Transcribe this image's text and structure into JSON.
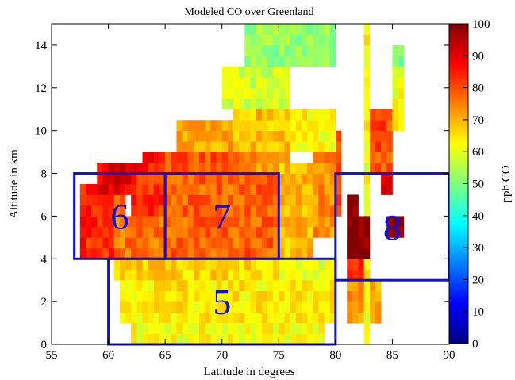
{
  "chart_data": {
    "type": "heatmap",
    "title": "Modeled CO over Greenland",
    "xlabel": "Latitude in degrees",
    "ylabel": "Altitude in km",
    "xlim": [
      55,
      90
    ],
    "ylim": [
      0,
      15
    ],
    "x_ticks": [
      "55",
      "60",
      "65",
      "70",
      "75",
      "80",
      "85",
      "90"
    ],
    "y_ticks": [
      "0",
      "2",
      "4",
      "6",
      "8",
      "10",
      "12",
      "14"
    ],
    "cell_size": {
      "lat": 0.5,
      "alt": 0.5
    },
    "colorbar": {
      "label": "ppb CO",
      "range": [
        0,
        100
      ],
      "ticks": [
        "0",
        "10",
        "20",
        "30",
        "40",
        "50",
        "60",
        "70",
        "80",
        "90",
        "100"
      ],
      "colormap": "jet"
    },
    "region_cells": [
      {
        "lat": [
          57.5,
          60.5
        ],
        "alt": [
          4,
          7.5
        ],
        "value": 84
      },
      {
        "lat": [
          60.5,
          61.5
        ],
        "alt": [
          4.5,
          7
        ],
        "value": 78
      },
      {
        "lat": [
          59,
          63
        ],
        "alt": [
          7,
          8.5
        ],
        "value": 90
      },
      {
        "lat": [
          62,
          65
        ],
        "alt": [
          6,
          8
        ],
        "value": 83
      },
      {
        "lat": [
          63,
          65
        ],
        "alt": [
          8,
          9
        ],
        "value": 86
      },
      {
        "lat": [
          60.5,
          65
        ],
        "alt": [
          4,
          6
        ],
        "value": 76
      },
      {
        "lat": [
          65,
          75
        ],
        "alt": [
          4,
          8
        ],
        "value": 78
      },
      {
        "lat": [
          65,
          72
        ],
        "alt": [
          8,
          9
        ],
        "value": 80
      },
      {
        "lat": [
          72,
          76
        ],
        "alt": [
          8,
          9
        ],
        "value": 73
      },
      {
        "lat": [
          66,
          71
        ],
        "alt": [
          9,
          10.5
        ],
        "value": 71
      },
      {
        "lat": [
          71,
          76
        ],
        "alt": [
          9,
          11
        ],
        "value": 68
      },
      {
        "lat": [
          75,
          78
        ],
        "alt": [
          4,
          8.5
        ],
        "value": 69
      },
      {
        "lat": [
          78,
          80
        ],
        "alt": [
          5,
          9
        ],
        "value": 74
      },
      {
        "lat": [
          80,
          80.5
        ],
        "alt": [
          6,
          10
        ],
        "value": 82
      },
      {
        "lat": [
          76,
          80
        ],
        "alt": [
          9,
          11
        ],
        "value": 63
      },
      {
        "lat": [
          60.5,
          66
        ],
        "alt": [
          3,
          4
        ],
        "value": 68
      },
      {
        "lat": [
          66,
          75
        ],
        "alt": [
          3,
          4
        ],
        "value": 66
      },
      {
        "lat": [
          75,
          80
        ],
        "alt": [
          3,
          4
        ],
        "value": 60
      },
      {
        "lat": [
          61,
          80
        ],
        "alt": [
          1,
          3
        ],
        "value": 64
      },
      {
        "lat": [
          62,
          79
        ],
        "alt": [
          0,
          1
        ],
        "value": 62
      },
      {
        "lat": [
          70,
          76
        ],
        "alt": [
          11,
          13
        ],
        "value": 58
      },
      {
        "lat": [
          72,
          80
        ],
        "alt": [
          13,
          15
        ],
        "value": 52
      },
      {
        "lat": [
          81,
          84
        ],
        "alt": [
          1,
          3
        ],
        "value": 72
      },
      {
        "lat": [
          81,
          83
        ],
        "alt": [
          3,
          5
        ],
        "value": 85
      },
      {
        "lat": [
          83,
          85
        ],
        "alt": [
          8,
          11
        ],
        "value": 80
      },
      {
        "lat": [
          85,
          86
        ],
        "alt": [
          10,
          13
        ],
        "value": 62
      },
      {
        "lat": [
          85,
          86
        ],
        "alt": [
          13,
          14
        ],
        "value": 52
      },
      {
        "lat": [
          82.5,
          83
        ],
        "alt": [
          0,
          15
        ],
        "value": 62
      },
      {
        "lat": [
          81,
          82
        ],
        "alt": [
          6,
          7
        ],
        "value": 97
      },
      {
        "lat": [
          81,
          83
        ],
        "alt": [
          4,
          6
        ],
        "value": 100
      },
      {
        "lat": [
          84.5,
          86
        ],
        "alt": [
          5,
          6
        ],
        "value": 100
      },
      {
        "lat": [
          84,
          85
        ],
        "alt": [
          7,
          8
        ],
        "value": 90
      }
    ],
    "boxes": [
      {
        "label": "6",
        "lat": [
          57,
          65
        ],
        "alt": [
          4,
          8
        ]
      },
      {
        "label": "7",
        "lat": [
          65,
          75
        ],
        "alt": [
          4,
          8
        ]
      },
      {
        "label": "5",
        "lat": [
          60,
          80
        ],
        "alt": [
          0,
          4
        ]
      },
      {
        "label": "8",
        "lat": [
          80,
          90
        ],
        "alt": [
          3,
          8
        ]
      }
    ],
    "box_color": "#1010dd"
  }
}
